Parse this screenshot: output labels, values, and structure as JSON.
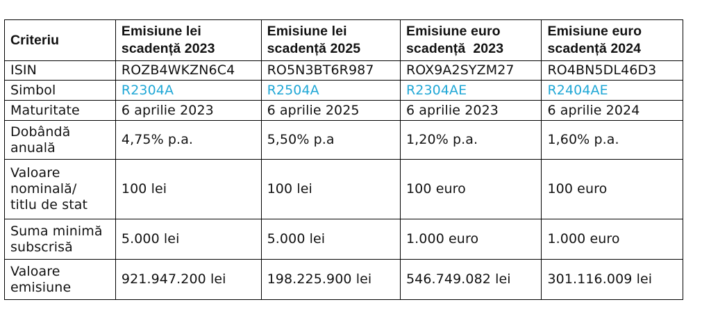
{
  "header": {
    "criteriu": "Criteriu",
    "col1": [
      "Emisiune lei",
      "scadență 2023"
    ],
    "col2": [
      "Emisiune lei",
      "scadență 2025"
    ],
    "col3": [
      "Emisiune euro",
      "scadență  2023"
    ],
    "col4": [
      "Emisiune euro",
      "scadență 2024"
    ]
  },
  "rows": {
    "isin": {
      "label": "ISIN",
      "values": [
        "ROZB4WKZN6C4",
        "RO5N3BT6R987",
        "ROX9A2SYZM27",
        "RO4BN5DL46D3"
      ]
    },
    "simbol": {
      "label": "Simbol",
      "values": [
        "R2304A",
        "R2504A",
        "R2304AE",
        "R2404AE"
      ]
    },
    "maturitate": {
      "label": "Maturitate",
      "values": [
        "6 aprilie 2023",
        "6 aprilie 2025",
        "6 aprilie 2023",
        "6 aprilie 2024"
      ]
    },
    "dobanda": {
      "label": [
        "Dobândă",
        "anuală"
      ],
      "values": [
        "4,75% p.a.",
        "5,50% p.a",
        "1,20% p.a.",
        "1,60% p.a."
      ]
    },
    "nominala": {
      "label": [
        "Valoare",
        "nominală/",
        "titlu de stat"
      ],
      "values": [
        "100 lei",
        "100 lei",
        "100 euro",
        "100 euro"
      ]
    },
    "suma_minima": {
      "label": [
        "Suma minimă",
        "subscrisă"
      ],
      "values": [
        "5.000 lei",
        "5.000 lei",
        "1.000 euro",
        "1.000 euro"
      ]
    },
    "valoare_emisiune": {
      "label": [
        "Valoare",
        "emisiune"
      ],
      "values": [
        "921.947.200 lei",
        "198.225.900 lei",
        "546.749.082 lei",
        "301.116.009 lei"
      ]
    }
  },
  "colors": {
    "symbol_link": "#1fa7d6",
    "border": "#000000",
    "text": "#111111"
  }
}
